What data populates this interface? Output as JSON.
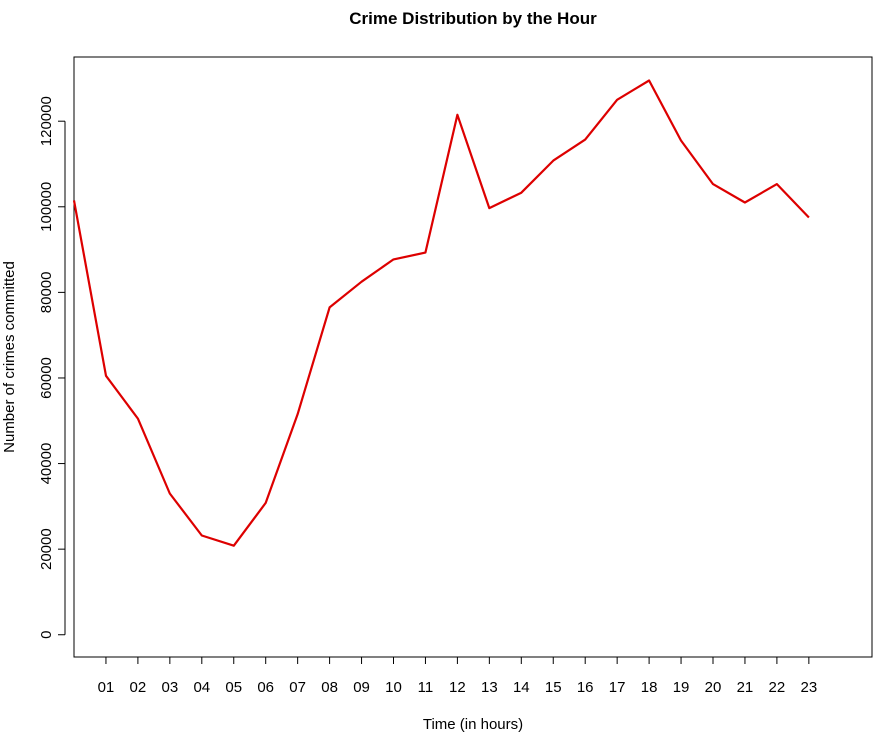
{
  "chart_data": {
    "type": "line",
    "title": "Crime Distribution by the Hour",
    "xlabel": "Time (in hours)",
    "ylabel": "Number of crimes committed",
    "x_tick_labels": [
      "01",
      "02",
      "03",
      "04",
      "05",
      "06",
      "07",
      "08",
      "09",
      "10",
      "11",
      "12",
      "13",
      "14",
      "15",
      "16",
      "17",
      "18",
      "19",
      "20",
      "21",
      "22",
      "23"
    ],
    "y_tick_labels": [
      "0",
      "20000",
      "40000",
      "60000",
      "80000",
      "100000",
      "120000"
    ],
    "y_ticks": [
      0,
      20000,
      40000,
      60000,
      80000,
      100000,
      120000
    ],
    "x": [
      "00",
      "01",
      "02",
      "03",
      "04",
      "05",
      "06",
      "07",
      "08",
      "09",
      "10",
      "11",
      "12",
      "13",
      "14",
      "15",
      "16",
      "17",
      "18",
      "19",
      "20",
      "21",
      "22",
      "23"
    ],
    "series": [
      {
        "color": "#dd0000",
        "values": [
          101500,
          60500,
          50500,
          33000,
          23200,
          20800,
          30800,
          51500,
          76500,
          82500,
          87700,
          89300,
          121500,
          99700,
          103300,
          110800,
          115700,
          125000,
          129500,
          115500,
          105300,
          101000,
          105300,
          97500
        ]
      }
    ],
    "ylim": [
      -5200,
      135000
    ],
    "grid": false,
    "legend": "none"
  }
}
